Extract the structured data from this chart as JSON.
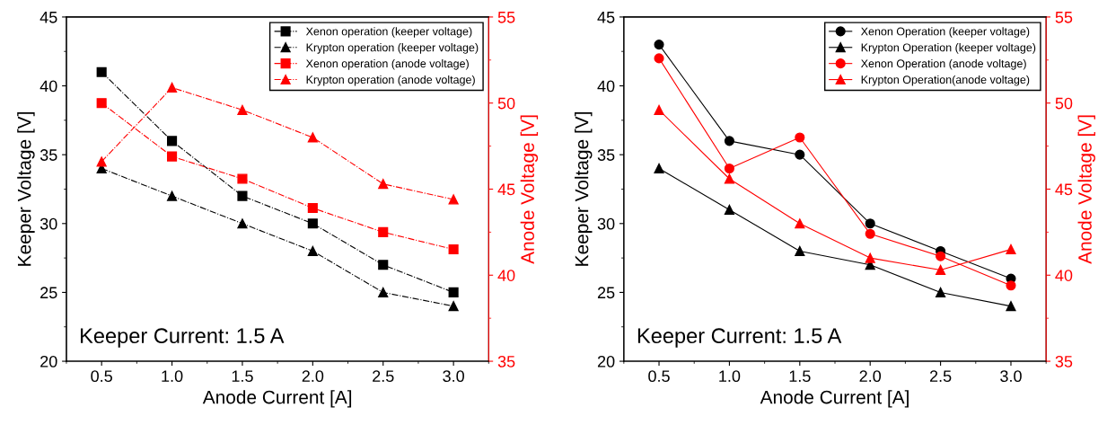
{
  "chart_data": [
    {
      "type": "line",
      "xlabel": "Anode Current [A]",
      "ylabel": "Keeper Voltage [V]",
      "y2label": "Anode Voltage [V]",
      "annotations": [
        "Keeper Current: 1.5 A"
      ],
      "x": [
        0.5,
        1.0,
        1.5,
        2.0,
        2.5,
        3.0
      ],
      "xlim": [
        0.25,
        3.25
      ],
      "xticks": [
        {
          "value": 0.5,
          "label": "0.5"
        },
        {
          "value": 1.0,
          "label": "1.0"
        },
        {
          "value": 1.5,
          "label": "1.5"
        },
        {
          "value": 2.0,
          "label": "2.0"
        },
        {
          "value": 2.5,
          "label": "2.5"
        },
        {
          "value": 3.0,
          "label": "3.0"
        }
      ],
      "ylim": [
        20,
        45
      ],
      "yticks": [
        20,
        25,
        30,
        35,
        40,
        45
      ],
      "y2lim": [
        35,
        55
      ],
      "y2ticks": [
        35,
        40,
        45,
        50,
        55
      ],
      "legend": "top right",
      "line_style": "dashed",
      "series": [
        {
          "name": "Xenon operation (keeper voltage)",
          "color": "#000000",
          "marker": "square",
          "values": [
            41,
            36,
            32,
            30,
            27,
            25
          ]
        },
        {
          "name": "Krypton operation (keeper voltage)",
          "color": "#000000",
          "marker": "triangle",
          "values": [
            34,
            32,
            30,
            28,
            25,
            24
          ]
        },
        {
          "name": "Xenon operation (anode voltage)",
          "color": "#ff0000",
          "marker": "square",
          "axis": "y2",
          "values": [
            50.0,
            46.9,
            45.6,
            43.9,
            42.5,
            41.5
          ]
        },
        {
          "name": "Krypton operation (anode voltage)",
          "color": "#ff0000",
          "marker": "triangle",
          "axis": "y2",
          "values": [
            46.6,
            50.9,
            49.6,
            48.0,
            45.3,
            44.4
          ]
        }
      ]
    },
    {
      "type": "line",
      "xlabel": "Anode Current [A]",
      "ylabel": "Keeper Voltage [V]",
      "y2label": "Anode Voltage [V]",
      "annotations": [
        "Keeper Current: 1.5 A"
      ],
      "x": [
        0.5,
        1.0,
        1.5,
        2.0,
        2.5,
        3.0
      ],
      "xlim": [
        0.25,
        3.25
      ],
      "xticks": [
        {
          "value": 0.5,
          "label": "0.5"
        },
        {
          "value": 1.0,
          "label": "1.0"
        },
        {
          "value": 1.5,
          "label": "1.5"
        },
        {
          "value": 2.0,
          "label": "2.0"
        },
        {
          "value": 2.5,
          "label": "2.5"
        },
        {
          "value": 3.0,
          "label": "3.0"
        }
      ],
      "ylim": [
        20,
        45
      ],
      "yticks": [
        20,
        25,
        30,
        35,
        40,
        45
      ],
      "y2lim": [
        35,
        55
      ],
      "y2ticks": [
        35,
        40,
        45,
        50,
        55
      ],
      "legend": "top right",
      "line_style": "solid",
      "series": [
        {
          "name": "Xenon Operation (keeper voltage)",
          "color": "#000000",
          "marker": "circle",
          "values": [
            43,
            36,
            35,
            30,
            28,
            26
          ]
        },
        {
          "name": "Krypton Operation (keeper voltage)",
          "color": "#000000",
          "marker": "triangle",
          "values": [
            34,
            31,
            28,
            27,
            25,
            24
          ]
        },
        {
          "name": "Xenon Operation (anode voltage)",
          "color": "#ff0000",
          "marker": "circle",
          "axis": "y2",
          "values": [
            52.6,
            46.2,
            48.0,
            42.4,
            41.1,
            39.4
          ]
        },
        {
          "name": "Krypton Operation(anode voltage)",
          "color": "#ff0000",
          "marker": "triangle",
          "axis": "y2",
          "values": [
            49.6,
            45.6,
            43.0,
            41.0,
            40.3,
            41.5
          ]
        }
      ]
    }
  ]
}
